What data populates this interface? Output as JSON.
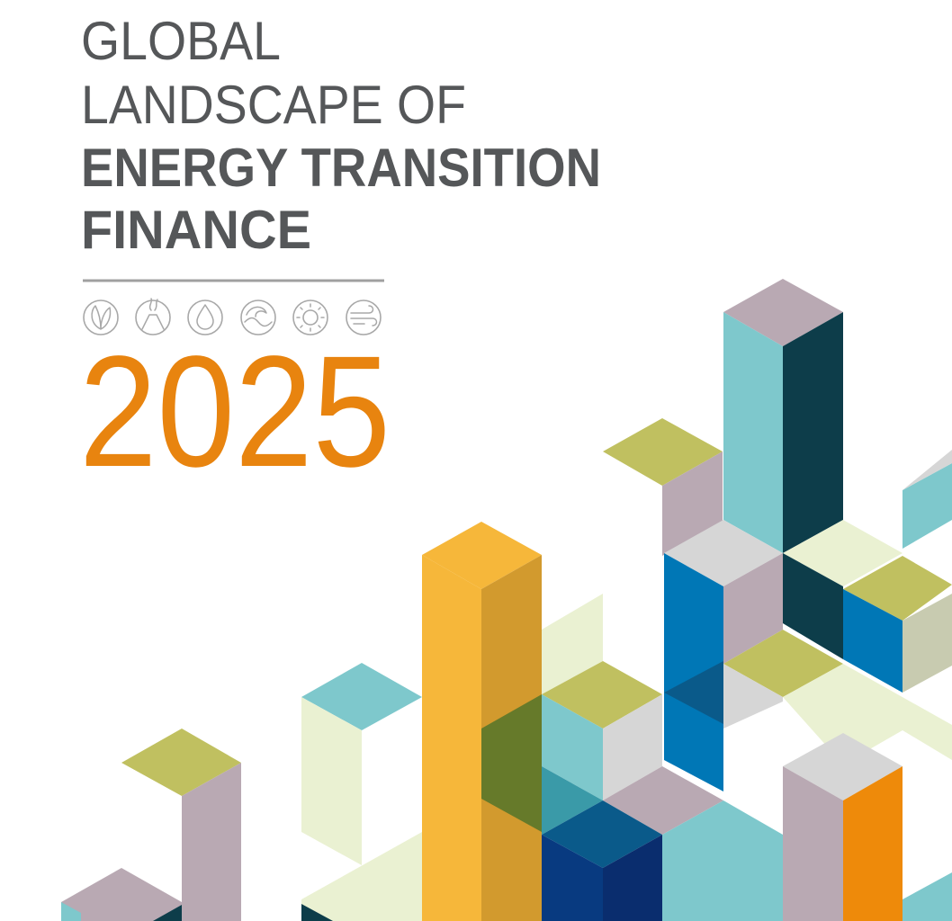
{
  "header": {
    "title_lines": [
      "GLOBAL",
      "LANDSCAPE OF",
      "ENERGY TRANSITION",
      "FINANCE"
    ],
    "year": "2025"
  }
}
